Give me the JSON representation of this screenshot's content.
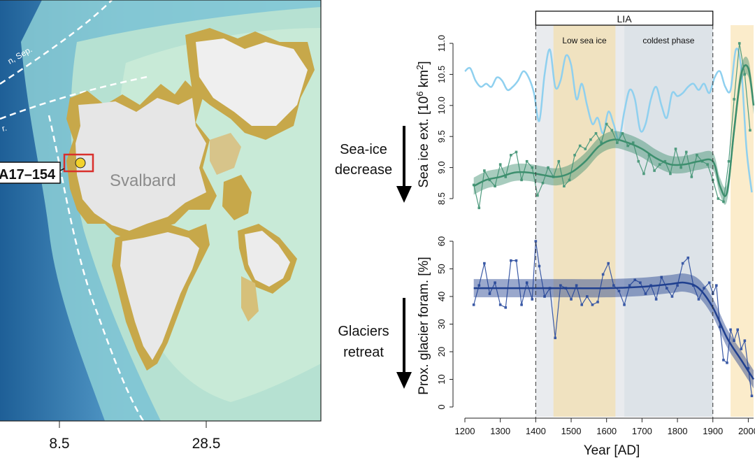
{
  "map": {
    "site_label": "A17–154",
    "region_label": "Svalbard",
    "contour_label_1": "n, Sep.",
    "contour_label_2": "r.",
    "lon_ticks": [
      "8.5",
      "28.5"
    ],
    "colors": {
      "ocean_deep": "#2f6fa6",
      "ocean_shelf": "#a9dccf",
      "land": "#c8a94a",
      "ice": "#eeeeee",
      "site": "#f2d22b",
      "site_box": "#d9302c"
    }
  },
  "annotations": {
    "sea_ice_arrow_label": [
      "Sea-ice",
      "decrease"
    ],
    "glacier_arrow_label": [
      "Glaciers",
      "retreat"
    ],
    "lia_label": "LIA",
    "low_sea_ice_label": "Low sea ice",
    "coldest_phase_label": "coldest phase"
  },
  "chart_data": [
    {
      "type": "line",
      "title": "",
      "xlabel": "Year [AD]",
      "ylabel": "Sea ice ext. [10^6 km^2]",
      "ylim": [
        8.5,
        11.0
      ],
      "yticks": [
        "8.5",
        "9.0",
        "9.5",
        "10.0",
        "10.5",
        "11.0"
      ],
      "series": [
        {
          "color": "#8fd0ef",
          "x": [
            1200,
            1215,
            1230,
            1245,
            1260,
            1275,
            1290,
            1305,
            1320,
            1335,
            1350,
            1365,
            1380,
            1395,
            1410,
            1425,
            1440,
            1455,
            1470,
            1485,
            1500,
            1515,
            1530,
            1545,
            1560,
            1575,
            1590,
            1605,
            1620,
            1635,
            1650,
            1665,
            1680,
            1695,
            1710,
            1725,
            1740,
            1755,
            1770,
            1785,
            1800,
            1815,
            1830,
            1845,
            1860,
            1875,
            1890,
            1905,
            1920,
            1935,
            1950,
            1965,
            1980,
            1995,
            2010
          ],
          "y": [
            10.55,
            10.6,
            10.4,
            10.3,
            10.35,
            10.3,
            10.45,
            10.4,
            10.25,
            10.3,
            10.4,
            10.55,
            10.45,
            10.2,
            9.75,
            10.5,
            10.9,
            10.3,
            10.4,
            10.8,
            10.65,
            10.1,
            10.35,
            10.0,
            9.7,
            9.8,
            9.55,
            9.9,
            9.7,
            9.45,
            9.9,
            10.25,
            10.1,
            9.6,
            9.7,
            10.1,
            10.3,
            10.0,
            9.8,
            10.2,
            10.15,
            10.2,
            10.3,
            10.35,
            10.25,
            10.35,
            10.2,
            10.45,
            10.55,
            10.3,
            10.25,
            10.9,
            10.6,
            9.3,
            8.6
          ]
        },
        {
          "color": "#4f9b7e",
          "x": [
            1225,
            1240,
            1255,
            1270,
            1285,
            1300,
            1315,
            1330,
            1345,
            1360,
            1375,
            1390,
            1405,
            1420,
            1435,
            1450,
            1465,
            1480,
            1495,
            1510,
            1525,
            1540,
            1555,
            1570,
            1585,
            1600,
            1615,
            1630,
            1645,
            1660,
            1675,
            1690,
            1705,
            1720,
            1735,
            1750,
            1765,
            1780,
            1795,
            1810,
            1825,
            1840,
            1855,
            1870,
            1885,
            1900,
            1915,
            1930,
            1945,
            1960,
            1975,
            1990,
            2005
          ],
          "y": [
            8.72,
            8.35,
            8.95,
            8.8,
            8.7,
            9.05,
            8.85,
            9.2,
            9.25,
            8.8,
            9.1,
            9.0,
            8.55,
            8.75,
            9.0,
            8.85,
            9.1,
            8.7,
            8.8,
            9.2,
            9.35,
            9.3,
            9.45,
            9.55,
            9.4,
            9.7,
            9.6,
            9.4,
            9.55,
            9.35,
            9.4,
            9.1,
            8.9,
            9.2,
            8.95,
            9.05,
            9.1,
            8.9,
            9.3,
            9.0,
            9.25,
            8.85,
            9.2,
            9.1,
            9.05,
            8.8,
            8.5,
            8.45,
            9.1,
            10.1,
            11.0,
            10.5,
            9.6
          ]
        },
        {
          "color": "#3d8f6e",
          "fit": true,
          "x": [
            1225,
            1260,
            1300,
            1340,
            1380,
            1420,
            1460,
            1500,
            1540,
            1580,
            1620,
            1660,
            1700,
            1740,
            1780,
            1820,
            1860,
            1900,
            1920,
            1940,
            1960,
            1980,
            2000,
            2015
          ],
          "y": [
            8.7,
            8.8,
            8.85,
            8.92,
            8.92,
            8.88,
            8.85,
            8.92,
            9.1,
            9.35,
            9.45,
            9.4,
            9.3,
            9.15,
            9.05,
            9.05,
            9.1,
            9.1,
            8.7,
            8.6,
            9.6,
            10.5,
            10.6,
            10.0
          ]
        }
      ]
    },
    {
      "type": "line",
      "title": "",
      "xlabel": "Year [AD]",
      "ylabel": "Prox. glacier foram. [%]",
      "ylim": [
        0,
        60
      ],
      "xlim": [
        1200,
        2015
      ],
      "yticks": [
        "0",
        "10",
        "20",
        "30",
        "40",
        "50",
        "60"
      ],
      "xticks": [
        "1200",
        "1300",
        "1400",
        "1500",
        "1600",
        "1700",
        "1800",
        "1900",
        "2000"
      ],
      "series": [
        {
          "color": "#3b5aa6",
          "x": [
            1225,
            1240,
            1255,
            1270,
            1285,
            1300,
            1315,
            1330,
            1345,
            1360,
            1375,
            1390,
            1400,
            1410,
            1425,
            1440,
            1455,
            1470,
            1485,
            1500,
            1515,
            1530,
            1545,
            1560,
            1575,
            1590,
            1605,
            1620,
            1635,
            1650,
            1665,
            1680,
            1695,
            1710,
            1725,
            1740,
            1755,
            1770,
            1785,
            1800,
            1815,
            1830,
            1845,
            1860,
            1875,
            1890,
            1900,
            1910,
            1920,
            1930,
            1940,
            1950,
            1960,
            1970,
            1980,
            1990,
            2000,
            2010
          ],
          "y": [
            37,
            44,
            52,
            41,
            45,
            37,
            36,
            53,
            53,
            37,
            45,
            39,
            60,
            51,
            40,
            43,
            25,
            44,
            43,
            39,
            44,
            37,
            40,
            37,
            38,
            48,
            52,
            44,
            42,
            37,
            44,
            46,
            45,
            41,
            44,
            39,
            47,
            43,
            40,
            44,
            52,
            54,
            44,
            39,
            43,
            45,
            41,
            44,
            29,
            17,
            16,
            28,
            24,
            28,
            21,
            24,
            14,
            4
          ]
        },
        {
          "color": "#1f3f8f",
          "fit": true,
          "x": [
            1225,
            1300,
            1400,
            1500,
            1600,
            1700,
            1780,
            1820,
            1860,
            1900,
            1940,
            1980,
            2015
          ],
          "y": [
            43,
            43,
            43,
            43,
            43,
            43.5,
            44.5,
            45,
            43,
            36,
            25,
            17,
            10
          ]
        }
      ]
    }
  ],
  "shading": {
    "lia_start": 1400,
    "lia_end": 1900,
    "low_sea_ice": [
      1450,
      1625
    ],
    "coldest_phase": [
      1650,
      1900
    ],
    "modern_warm": [
      1950,
      2015
    ]
  }
}
